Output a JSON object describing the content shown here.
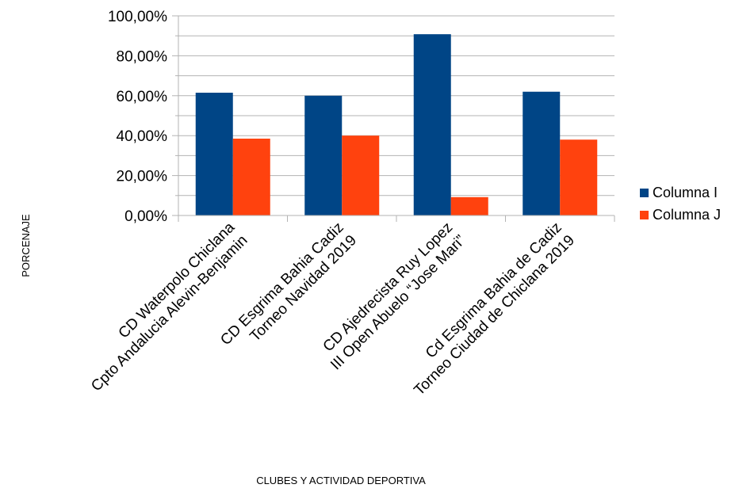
{
  "chart_data": {
    "type": "bar",
    "categories": [
      [
        "CD Waterpolo Chiclana",
        "Cpto Andalucia Alevin-Benjamin"
      ],
      [
        "CD Esgrima Bahia Cadiz",
        "Torneo Navidad 2019"
      ],
      [
        "CD Ajedrecista Ruy Lopez",
        "III Open Abuelo “Jose Mari”"
      ],
      [
        "Cd Esgrima Bahia de Cadiz",
        "Torneo Ciudad de Chiclana 2019"
      ]
    ],
    "series": [
      {
        "name": "Columna I",
        "color": "#004586",
        "values": [
          61.5,
          60.0,
          90.8,
          62.0
        ]
      },
      {
        "name": "Columna J",
        "color": "#ff420e",
        "values": [
          38.5,
          40.0,
          9.2,
          38.0
        ]
      }
    ],
    "ylim": [
      0,
      100
    ],
    "yticks": [
      0,
      20,
      40,
      60,
      80,
      100
    ],
    "ytick_labels": [
      "0,00%",
      "20,00%",
      "40,00%",
      "60,00%",
      "80,00%",
      "100,00%"
    ],
    "xlabel": "CLUBES Y ACTIVIDAD DEPORTIVA",
    "ylabel": "PORCENAJE",
    "grid": true,
    "legend": "right"
  }
}
